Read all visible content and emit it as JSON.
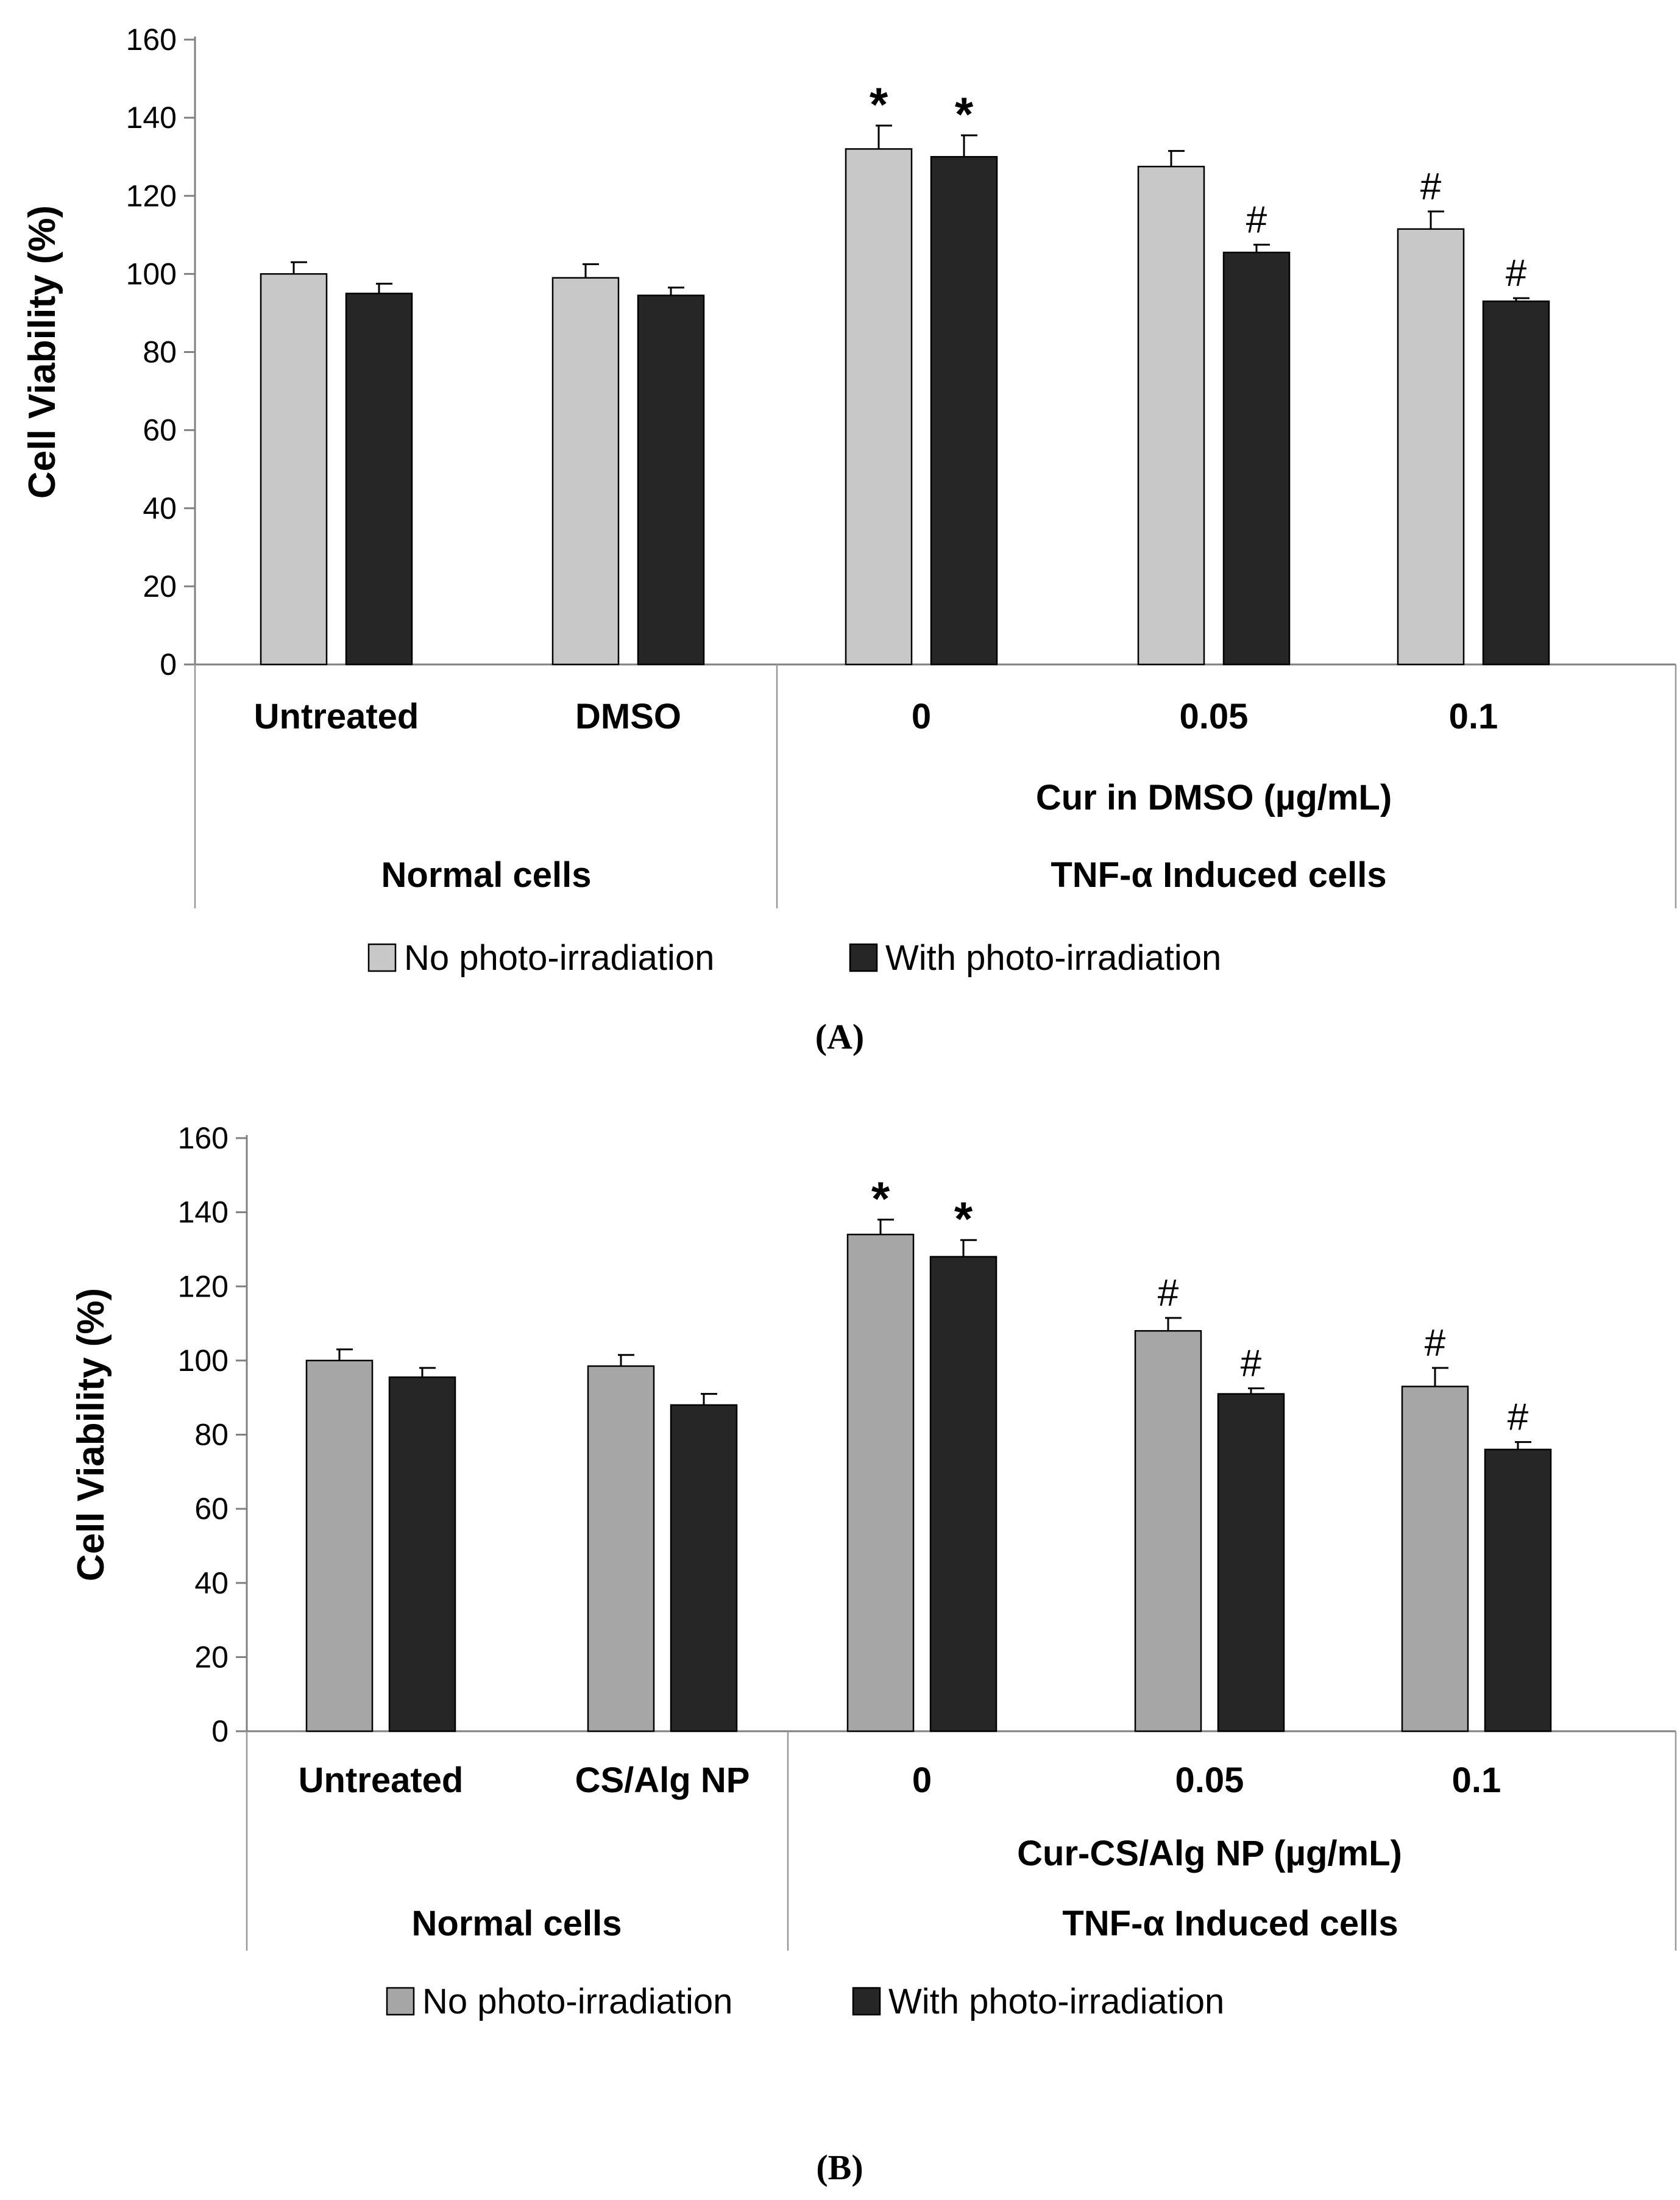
{
  "colors": {
    "no_irr": "#c8c8c8",
    "no_irr_b": "#a6a6a6",
    "with_irr": "#262626",
    "axis": "#808080",
    "sep": "#999999"
  },
  "chart_data": [
    {
      "type": "bar",
      "panel_label": "(A)",
      "ylabel": "Cell Viability (%)",
      "ylim": [
        0,
        160
      ],
      "yticks": [
        0,
        20,
        40,
        60,
        80,
        100,
        120,
        140,
        160
      ],
      "categories": [
        "Untreated",
        "DMSO",
        "0",
        "0.05",
        "0.1"
      ],
      "subgroup_label": "Cur in DMSO (µg/mL)",
      "groups": [
        "Normal cells",
        "TNF-α Induced cells"
      ],
      "legend": [
        "No photo-irradiation",
        "With photo-irradiation"
      ],
      "series": [
        {
          "name": "No photo-irradiation",
          "values": [
            100,
            99,
            132,
            127.5,
            111.5
          ],
          "errors": [
            3,
            3.5,
            6,
            4,
            4.5
          ],
          "marks": [
            "",
            "",
            "*",
            "",
            "#"
          ]
        },
        {
          "name": "With photo-irradiation",
          "values": [
            95,
            94.5,
            130,
            105.5,
            93
          ],
          "errors": [
            2.5,
            2,
            5.5,
            2,
            0.8
          ],
          "marks": [
            "",
            "",
            "*",
            "#",
            "#"
          ]
        }
      ]
    },
    {
      "type": "bar",
      "panel_label": "(B)",
      "ylabel": "Cell Viability (%)",
      "ylim": [
        0,
        160
      ],
      "yticks": [
        0,
        20,
        40,
        60,
        80,
        100,
        120,
        140,
        160
      ],
      "categories": [
        "Untreated",
        "CS/Alg NP",
        "0",
        "0.05",
        "0.1"
      ],
      "subgroup_label": "Cur-CS/Alg NP (µg/mL)",
      "groups": [
        "Normal cells",
        "TNF-α Induced cells"
      ],
      "legend": [
        "No photo-irradiation",
        "With photo-irradiation"
      ],
      "series": [
        {
          "name": "No photo-irradiation",
          "values": [
            100,
            98.5,
            134,
            108,
            93
          ],
          "errors": [
            3,
            3,
            4,
            3.5,
            5
          ],
          "marks": [
            "",
            "",
            "*",
            "#",
            "#"
          ]
        },
        {
          "name": "With photo-irradiation",
          "values": [
            95.5,
            88,
            128,
            91,
            76
          ],
          "errors": [
            2.5,
            3,
            4.5,
            1.5,
            2
          ],
          "marks": [
            "",
            "",
            "*",
            "#",
            "#"
          ]
        }
      ]
    }
  ]
}
